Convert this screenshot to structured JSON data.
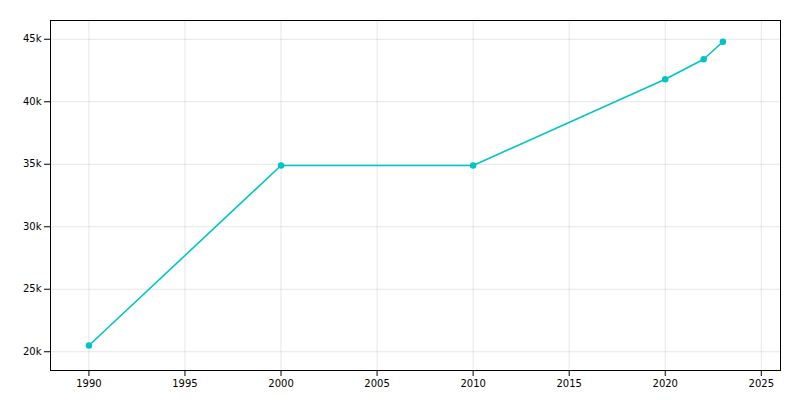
{
  "chart_data": {
    "type": "line",
    "x": [
      1990,
      2000,
      2010,
      2020,
      2022,
      2023
    ],
    "values": [
      20500,
      34900,
      34900,
      41800,
      43400,
      44800
    ],
    "color": "#00C5C5",
    "marker": "circle",
    "xlim": [
      1988,
      2026
    ],
    "ylim": [
      18500,
      46500
    ],
    "xticks": [
      1990,
      1995,
      2000,
      2005,
      2010,
      2015,
      2020,
      2025
    ],
    "yticks": [
      {
        "value": 20000,
        "label": "20k"
      },
      {
        "value": 25000,
        "label": "25k"
      },
      {
        "value": 30000,
        "label": "30k"
      },
      {
        "value": 35000,
        "label": "35k"
      },
      {
        "value": 40000,
        "label": "40k"
      },
      {
        "value": 45000,
        "label": "45k"
      }
    ],
    "grid": true
  }
}
